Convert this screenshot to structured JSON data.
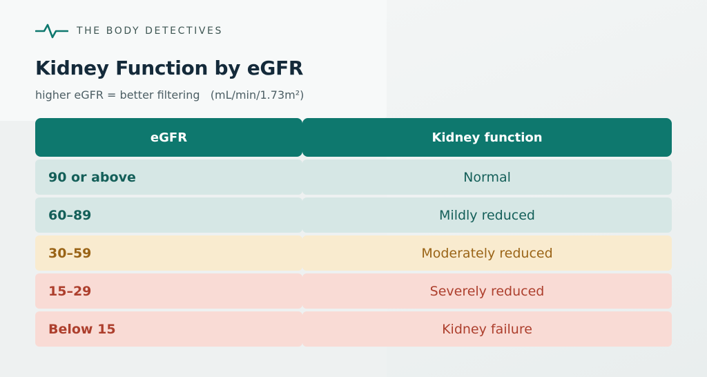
{
  "brand": {
    "name": "THE BODY DETECTIVES",
    "logo_icon": "heartbeat-line-icon",
    "logo_color": "#0e786e"
  },
  "title": "Kidney Function by eGFR",
  "subtitle": "higher eGFR = better filtering   (mL/min/1.73m²)",
  "table": {
    "headers": [
      "eGFR",
      "Kidney function"
    ],
    "rows": [
      {
        "egfr": "90 or above",
        "function": "Normal",
        "tone": "teal"
      },
      {
        "egfr": "60–89",
        "function": "Mildly reduced",
        "tone": "teal"
      },
      {
        "egfr": "30–59",
        "function": "Moderately reduced",
        "tone": "amber"
      },
      {
        "egfr": "15–29",
        "function": "Severely reduced",
        "tone": "red"
      },
      {
        "egfr": "Below 15",
        "function": "Kidney failure",
        "tone": "red"
      }
    ]
  },
  "colors": {
    "header": "#0e786e",
    "teal_row": "#d6e7e5",
    "amber_row": "#f9ebcf",
    "red_row": "#f9dbd5"
  }
}
